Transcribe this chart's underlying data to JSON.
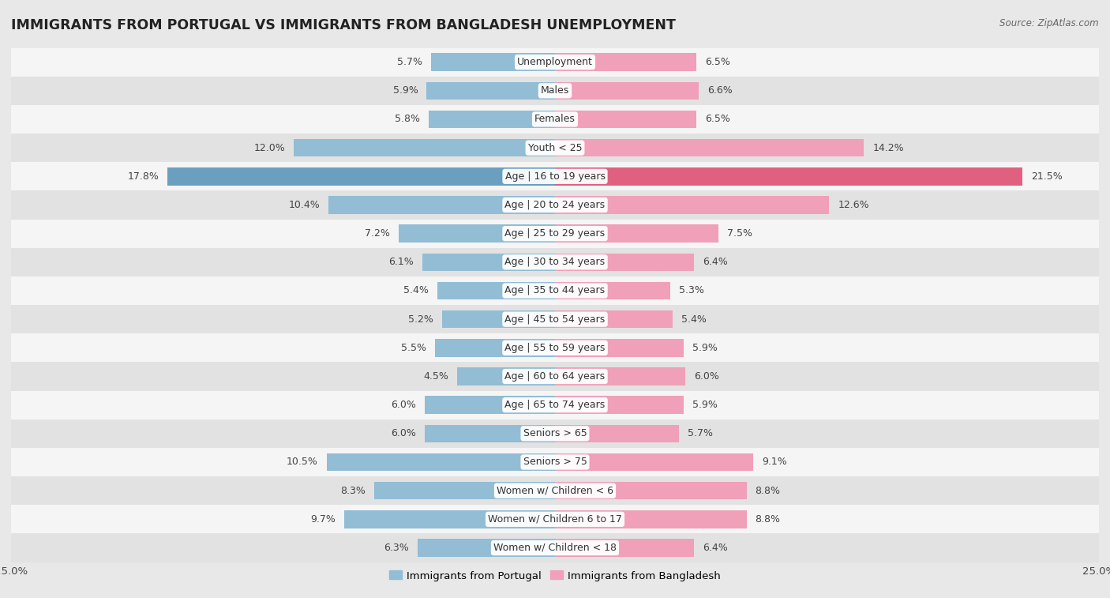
{
  "title": "IMMIGRANTS FROM PORTUGAL VS IMMIGRANTS FROM BANGLADESH UNEMPLOYMENT",
  "source": "Source: ZipAtlas.com",
  "categories": [
    "Unemployment",
    "Males",
    "Females",
    "Youth < 25",
    "Age | 16 to 19 years",
    "Age | 20 to 24 years",
    "Age | 25 to 29 years",
    "Age | 30 to 34 years",
    "Age | 35 to 44 years",
    "Age | 45 to 54 years",
    "Age | 55 to 59 years",
    "Age | 60 to 64 years",
    "Age | 65 to 74 years",
    "Seniors > 65",
    "Seniors > 75",
    "Women w/ Children < 6",
    "Women w/ Children 6 to 17",
    "Women w/ Children < 18"
  ],
  "portugal_values": [
    5.7,
    5.9,
    5.8,
    12.0,
    17.8,
    10.4,
    7.2,
    6.1,
    5.4,
    5.2,
    5.5,
    4.5,
    6.0,
    6.0,
    10.5,
    8.3,
    9.7,
    6.3
  ],
  "bangladesh_values": [
    6.5,
    6.6,
    6.5,
    14.2,
    21.5,
    12.6,
    7.5,
    6.4,
    5.3,
    5.4,
    5.9,
    6.0,
    5.9,
    5.7,
    9.1,
    8.8,
    8.8,
    6.4
  ],
  "portugal_color": "#92bdd4",
  "bangladesh_color": "#f0a0b8",
  "portugal_highlight_color": "#6a9fc0",
  "bangladesh_highlight_color": "#e06080",
  "background_outer": "#e8e8e8",
  "row_color_light": "#f5f5f5",
  "row_color_dark": "#e2e2e2",
  "axis_max": 25.0,
  "legend_portugal": "Immigrants from Portugal",
  "legend_bangladesh": "Immigrants from Bangladesh",
  "title_fontsize": 12.5,
  "label_fontsize": 9,
  "value_fontsize": 9,
  "highlight_rows": [
    4
  ]
}
